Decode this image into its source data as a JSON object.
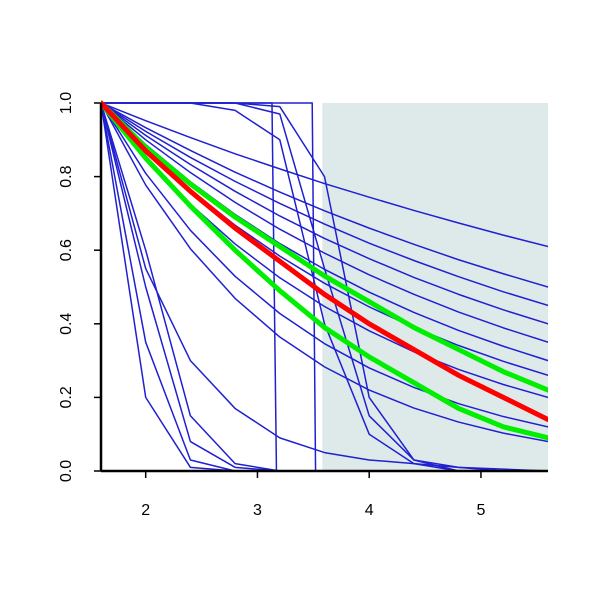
{
  "chart_data": {
    "type": "line",
    "xlim": [
      1.6,
      5.6
    ],
    "ylim": [
      0,
      1
    ],
    "xticks": [
      2,
      3,
      4,
      5
    ],
    "yticks": [
      {
        "value": 0,
        "label": "0.0"
      },
      {
        "value": 0.2,
        "label": "0.2"
      },
      {
        "value": 0.4,
        "label": "0.4"
      },
      {
        "value": 0.6,
        "label": "0.6"
      },
      {
        "value": 0.8,
        "label": "0.8"
      },
      {
        "value": 1,
        "label": "1.0"
      }
    ],
    "shade_xlim": [
      3.58,
      5.6
    ],
    "shade_color": "#deeaea",
    "x": [
      1.6,
      2.0,
      2.4,
      2.8,
      3.2,
      3.6,
      4.0,
      4.4,
      4.8,
      5.2,
      5.6
    ],
    "series": [
      {
        "color": "#2020d0",
        "width": 1.5,
        "values": [
          1,
          0.952,
          0.906,
          0.862,
          0.821,
          0.781,
          0.744,
          0.708,
          0.674,
          0.641,
          0.61
        ]
      },
      {
        "color": "#2020d0",
        "width": 1.5,
        "values": [
          1,
          0.933,
          0.871,
          0.812,
          0.758,
          0.707,
          0.66,
          0.616,
          0.574,
          0.536,
          0.5
        ]
      },
      {
        "color": "#2020d0",
        "width": 1.5,
        "values": [
          1,
          0.923,
          0.852,
          0.787,
          0.727,
          0.671,
          0.619,
          0.572,
          0.528,
          0.487,
          0.45
        ]
      },
      {
        "color": "#2020d0",
        "width": 1.5,
        "values": [
          1,
          0.912,
          0.833,
          0.76,
          0.693,
          0.632,
          0.577,
          0.526,
          0.48,
          0.438,
          0.4
        ]
      },
      {
        "color": "#2020d0",
        "width": 1.5,
        "values": [
          1,
          0.9,
          0.811,
          0.73,
          0.657,
          0.592,
          0.533,
          0.48,
          0.432,
          0.389,
          0.35
        ]
      },
      {
        "color": "#2020d0",
        "width": 1.5,
        "values": [
          1,
          0.887,
          0.786,
          0.697,
          0.618,
          0.548,
          0.486,
          0.431,
          0.382,
          0.339,
          0.3
        ]
      },
      {
        "color": "#2020d0",
        "width": 1.5,
        "values": [
          1,
          0.874,
          0.764,
          0.668,
          0.584,
          0.51,
          0.446,
          0.39,
          0.341,
          0.298,
          0.26
        ]
      },
      {
        "color": "#2020d0",
        "width": 1.5,
        "values": [
          1,
          0.851,
          0.725,
          0.617,
          0.525,
          0.447,
          0.381,
          0.324,
          0.276,
          0.235,
          0.2
        ]
      },
      {
        "color": "#2020d0",
        "width": 1.5,
        "values": [
          1,
          0.809,
          0.654,
          0.529,
          0.428,
          0.346,
          0.28,
          0.227,
          0.183,
          0.148,
          0.12
        ]
      },
      {
        "color": "#2020d0",
        "width": 1.5,
        "values": [
          1,
          0.777,
          0.604,
          0.469,
          0.364,
          0.283,
          0.22,
          0.171,
          0.133,
          0.103,
          0.08
        ]
      },
      {
        "color": "#2020d0",
        "width": 1.5,
        "values": [
          1,
          0.55,
          0.3,
          0.17,
          0.09,
          0.05,
          0.03,
          0.02,
          0.01,
          0.005,
          0
        ]
      },
      {
        "color": "#2020d0",
        "width": 1.5,
        "values": [
          1,
          0.2,
          0.01,
          0,
          0,
          0,
          0,
          0,
          0,
          0,
          0
        ]
      },
      {
        "color": "#2020d0",
        "width": 1.5,
        "values": [
          1,
          0.35,
          0.03,
          0,
          0,
          0,
          0,
          0,
          0,
          0,
          0
        ]
      },
      {
        "color": "#2020d0",
        "width": 1.5,
        "values": [
          1,
          0.5,
          0.08,
          0.01,
          0,
          0,
          0,
          0,
          0,
          0,
          0
        ]
      },
      {
        "color": "#2020d0",
        "width": 1.5,
        "values": [
          1,
          0.6,
          0.15,
          0.02,
          0,
          0,
          0,
          0,
          0,
          0,
          0
        ]
      },
      {
        "color": "#2020d0",
        "width": 1.5,
        "values": [
          1,
          1,
          1,
          1,
          0.97,
          0.55,
          0.15,
          0.03,
          0.01,
          0,
          0
        ]
      },
      {
        "color": "#2020d0",
        "width": 1.5,
        "values": [
          1,
          1,
          1,
          1,
          0.99,
          0.8,
          0.2,
          0.03,
          0,
          0,
          0
        ]
      },
      {
        "color": "#2020d0",
        "width": 1.5,
        "values": [
          1,
          1,
          1,
          0.98,
          0.9,
          0.4,
          0.1,
          0.02,
          0,
          0,
          0
        ]
      },
      {
        "color": "#2020d0",
        "width": 1.5,
        "x": [
          1.6,
          3.13,
          3.17
        ],
        "values": [
          1,
          1,
          0
        ]
      },
      {
        "color": "#2020d0",
        "width": 1.5,
        "x": [
          1.6,
          3.49,
          3.52
        ],
        "values": [
          1,
          1,
          0
        ]
      },
      {
        "color": "#00ee00",
        "width": 5,
        "values": [
          1,
          0.88,
          0.78,
          0.69,
          0.61,
          0.53,
          0.46,
          0.39,
          0.33,
          0.27,
          0.22
        ]
      },
      {
        "color": "#00ee00",
        "width": 5,
        "values": [
          1,
          0.85,
          0.72,
          0.6,
          0.49,
          0.39,
          0.31,
          0.24,
          0.17,
          0.12,
          0.09
        ]
      },
      {
        "color": "#ff0000",
        "width": 5,
        "values": [
          1,
          0.87,
          0.76,
          0.66,
          0.57,
          0.48,
          0.4,
          0.33,
          0.26,
          0.2,
          0.14
        ]
      }
    ]
  }
}
